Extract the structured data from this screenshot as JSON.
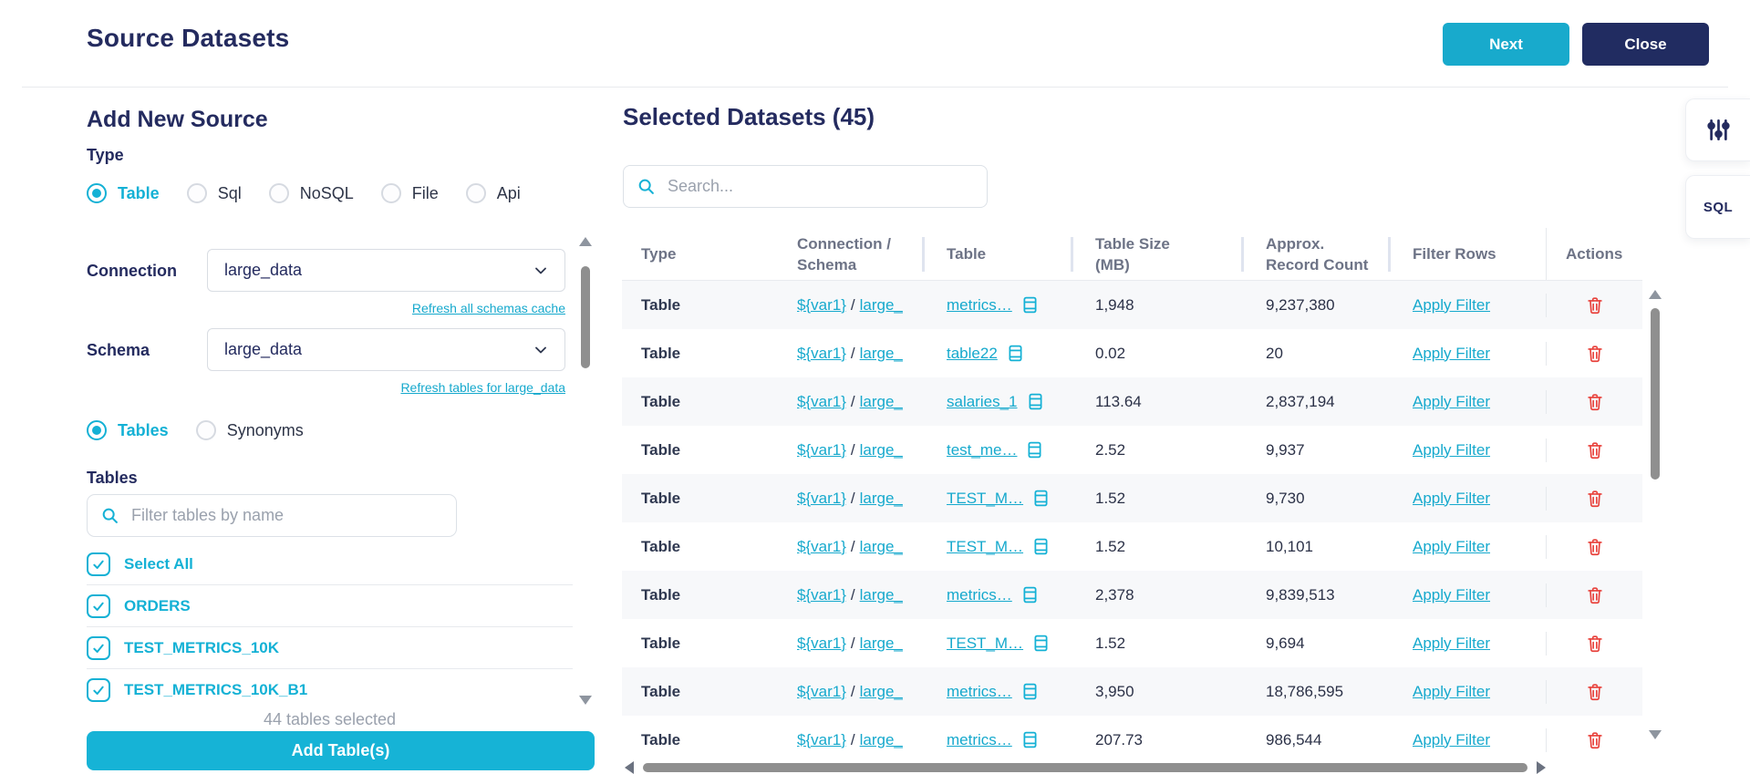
{
  "header": {
    "title": "Source Datasets",
    "next": "Next",
    "close": "Close"
  },
  "left": {
    "heading": "Add New Source",
    "type_label": "Type",
    "type_options": [
      {
        "label": "Table",
        "selected": true
      },
      {
        "label": "Sql",
        "selected": false
      },
      {
        "label": "NoSQL",
        "selected": false
      },
      {
        "label": "File",
        "selected": false
      },
      {
        "label": "Api",
        "selected": false
      }
    ],
    "connection_label": "Connection",
    "connection_value": "large_data",
    "refresh_schemas": "Refresh all schemas cache",
    "schema_label": "Schema",
    "schema_value": "large_data",
    "refresh_tables": "Refresh tables for large_data",
    "mode_options": [
      {
        "label": "Tables",
        "selected": true
      },
      {
        "label": "Synonyms",
        "selected": false
      }
    ],
    "tables_label": "Tables",
    "filter_placeholder": "Filter tables by name",
    "select_all": "Select All",
    "tables": [
      {
        "name": "ORDERS",
        "checked": true
      },
      {
        "name": "TEST_METRICS_10K",
        "checked": true
      },
      {
        "name": "TEST_METRICS_10K_B1",
        "checked": true
      }
    ],
    "count_text": "44 tables selected",
    "add_button": "Add Table(s)"
  },
  "right": {
    "heading": "Selected Datasets (45)",
    "search_placeholder": "Search...",
    "conn_separator": "/",
    "columns": [
      {
        "lines": [
          "Type"
        ]
      },
      {
        "lines": [
          "Connection /",
          "Schema"
        ]
      },
      {
        "lines": [
          "Table"
        ]
      },
      {
        "lines": [
          "Table Size",
          "(MB)"
        ]
      },
      {
        "lines": [
          "Approx.",
          "Record Count"
        ]
      },
      {
        "lines": [
          "Filter Rows"
        ]
      },
      {
        "lines": [
          "Actions"
        ]
      }
    ],
    "rows": [
      {
        "type": "Table",
        "conn": "${var1}",
        "schema": "large_",
        "table": "metrics…",
        "size": "1,948",
        "records": "9,237,380",
        "filter": "Apply Filter"
      },
      {
        "type": "Table",
        "conn": "${var1}",
        "schema": "large_",
        "table": "table22",
        "size": "0.02",
        "records": "20",
        "filter": "Apply Filter"
      },
      {
        "type": "Table",
        "conn": "${var1}",
        "schema": "large_",
        "table": "salaries_1",
        "size": "113.64",
        "records": "2,837,194",
        "filter": "Apply Filter"
      },
      {
        "type": "Table",
        "conn": "${var1}",
        "schema": "large_",
        "table": "test_me…",
        "size": "2.52",
        "records": "9,937",
        "filter": "Apply Filter"
      },
      {
        "type": "Table",
        "conn": "${var1}",
        "schema": "large_",
        "table": "TEST_M…",
        "size": "1.52",
        "records": "9,730",
        "filter": "Apply Filter"
      },
      {
        "type": "Table",
        "conn": "${var1}",
        "schema": "large_",
        "table": "TEST_M…",
        "size": "1.52",
        "records": "10,101",
        "filter": "Apply Filter"
      },
      {
        "type": "Table",
        "conn": "${var1}",
        "schema": "large_",
        "table": "metrics…",
        "size": "2,378",
        "records": "9,839,513",
        "filter": "Apply Filter"
      },
      {
        "type": "Table",
        "conn": "${var1}",
        "schema": "large_",
        "table": "TEST_M…",
        "size": "1.52",
        "records": "9,694",
        "filter": "Apply Filter"
      },
      {
        "type": "Table",
        "conn": "${var1}",
        "schema": "large_",
        "table": "metrics…",
        "size": "3,950",
        "records": "18,786,595",
        "filter": "Apply Filter"
      },
      {
        "type": "Table",
        "conn": "${var1}",
        "schema": "large_",
        "table": "metrics…",
        "size": "207.73",
        "records": "986,544",
        "filter": "Apply Filter"
      }
    ]
  },
  "side_tools": {
    "sql": "SQL"
  },
  "colors": {
    "accent": "#14b1d5",
    "navy": "#242b5f",
    "link": "#16a9cd",
    "danger": "#e8403a"
  }
}
